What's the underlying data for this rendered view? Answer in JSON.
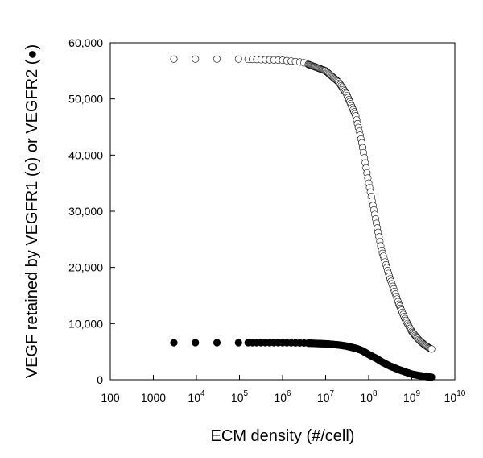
{
  "chart_data": {
    "type": "scatter",
    "title": "",
    "xlabel": "ECM density (#/cell)",
    "ylabel": "VEGF retained by VEGFR1 (o) or VEGFR2 (●)",
    "x_scale": "log",
    "xlim": [
      100,
      10000000000
    ],
    "ylim": [
      0,
      60000
    ],
    "x_ticks": [
      {
        "value": 100,
        "base": "100",
        "exp": ""
      },
      {
        "value": 1000,
        "base": "1000",
        "exp": ""
      },
      {
        "value": 10000,
        "base": "10",
        "exp": "4"
      },
      {
        "value": 100000,
        "base": "10",
        "exp": "5"
      },
      {
        "value": 1000000,
        "base": "10",
        "exp": "6"
      },
      {
        "value": 10000000,
        "base": "10",
        "exp": "7"
      },
      {
        "value": 100000000,
        "base": "10",
        "exp": "8"
      },
      {
        "value": 1000000000,
        "base": "10",
        "exp": "9"
      },
      {
        "value": 10000000000,
        "base": "10",
        "exp": "10"
      }
    ],
    "y_ticks": [
      {
        "value": 0,
        "label": "0"
      },
      {
        "value": 10000,
        "label": "10,000"
      },
      {
        "value": 20000,
        "label": "20,000"
      },
      {
        "value": 30000,
        "label": "30,000"
      },
      {
        "value": 40000,
        "label": "40,000"
      },
      {
        "value": 50000,
        "label": "50,000"
      },
      {
        "value": 60000,
        "label": "60,000"
      }
    ],
    "grid": false,
    "series": [
      {
        "marker": "open-circle",
        "x": [
          3000,
          10000,
          30000,
          100000,
          300000,
          1000000,
          3000000,
          10000000,
          20000000,
          30000000,
          50000000,
          70000000,
          100000000,
          150000000,
          200000000,
          300000000,
          500000000,
          700000000,
          1000000000,
          1500000000,
          2000000000,
          2500000000,
          3000000000
        ],
        "y": [
          57100,
          57100,
          57100,
          57100,
          57000,
          56900,
          56500,
          55000,
          53000,
          51000,
          47000,
          42000,
          35000,
          28000,
          23000,
          18500,
          13500,
          10800,
          8600,
          7000,
          6200,
          5700,
          5400
        ]
      },
      {
        "marker": "filled-circle",
        "x": [
          3000,
          10000,
          30000,
          100000,
          300000,
          1000000,
          3000000,
          10000000,
          20000000,
          30000000,
          50000000,
          70000000,
          100000000,
          150000000,
          200000000,
          300000000,
          500000000,
          700000000,
          1000000000,
          1500000000,
          2000000000,
          2500000000,
          3000000000
        ],
        "y": [
          6600,
          6600,
          6600,
          6600,
          6600,
          6600,
          6550,
          6400,
          6200,
          6000,
          5600,
          5200,
          4500,
          3800,
          3200,
          2500,
          1800,
          1400,
          1000,
          750,
          600,
          500,
          450
        ]
      }
    ]
  }
}
